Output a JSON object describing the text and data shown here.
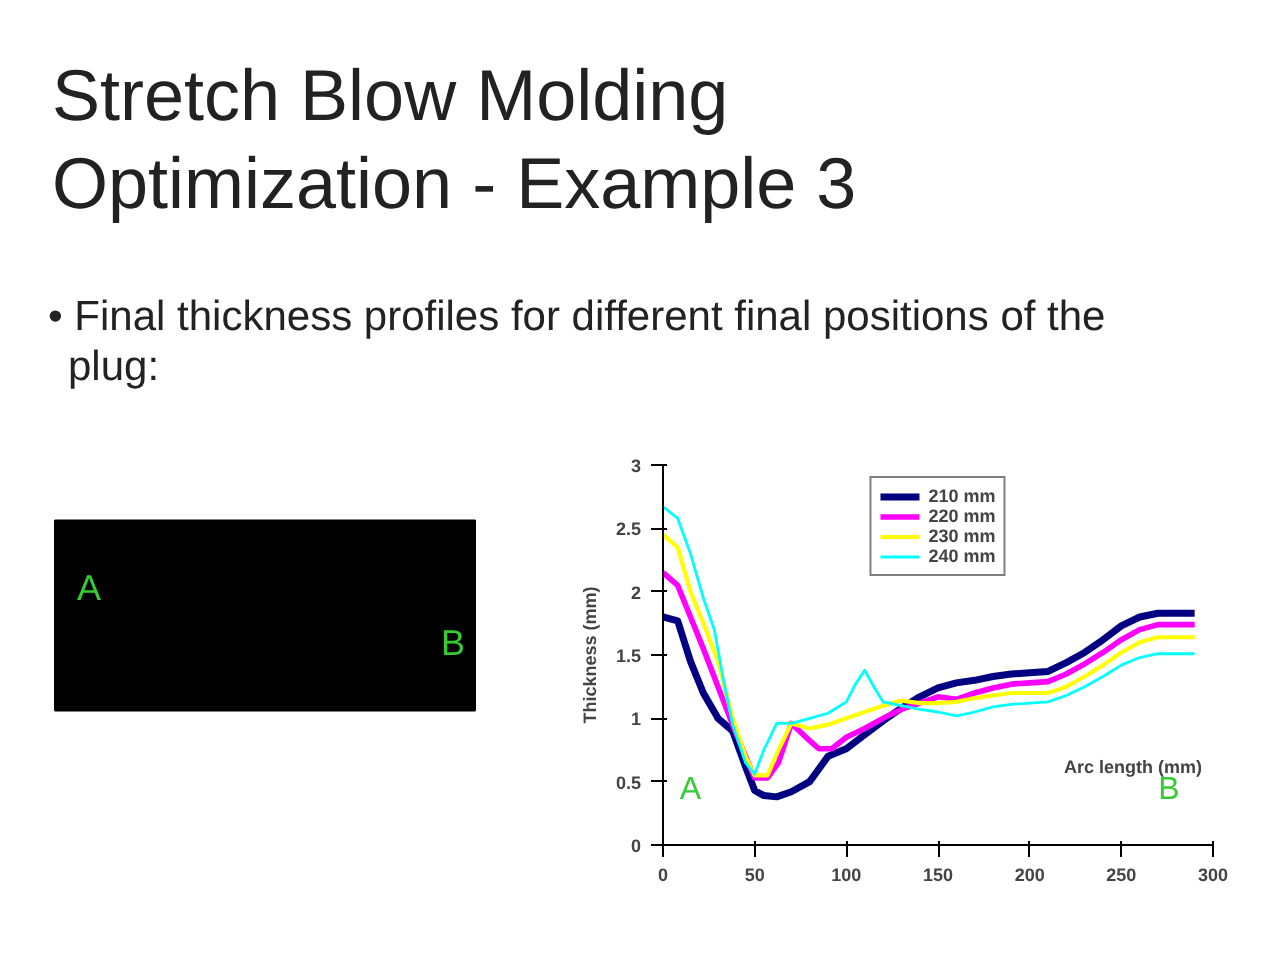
{
  "chart_data": {
    "type": "line",
    "title": "Stretch Blow Molding Optimization - Example 3",
    "subtitle": "• Final thickness profiles for different final positions of the plug:",
    "xlabel": "Arc length (mm)",
    "ylabel": "Thickness (mm)",
    "xlim": [
      0,
      300
    ],
    "ylim": [
      0,
      3
    ],
    "xticks": [
      0,
      50,
      100,
      150,
      200,
      250,
      300
    ],
    "yticks": [
      0,
      0.5,
      1,
      1.5,
      2,
      2.5,
      3
    ],
    "grid": false,
    "legend": "top",
    "marker": "none",
    "line_style": "solid",
    "annotations": [
      "A",
      "B",
      "A",
      "B"
    ],
    "series": [
      {
        "name": "210 mm",
        "color": "#000080",
        "x": [
          0,
          8,
          15,
          22,
          30,
          38,
          45,
          50,
          55,
          62,
          70,
          80,
          90,
          100,
          110,
          120,
          130,
          140,
          150,
          160,
          170,
          180,
          190,
          200,
          210,
          220,
          230,
          240,
          250,
          260,
          270,
          290
        ],
        "values": [
          1.8,
          1.77,
          1.45,
          1.2,
          1.0,
          0.9,
          0.62,
          0.43,
          0.39,
          0.38,
          0.42,
          0.5,
          0.7,
          0.76,
          0.87,
          0.98,
          1.08,
          1.17,
          1.24,
          1.28,
          1.3,
          1.33,
          1.35,
          1.36,
          1.37,
          1.44,
          1.52,
          1.62,
          1.73,
          1.8,
          1.83,
          1.83
        ]
      },
      {
        "name": "220 mm",
        "color": "#ff00ff",
        "x": [
          0,
          8,
          15,
          22,
          30,
          38,
          45,
          50,
          57,
          63,
          70,
          78,
          85,
          92,
          100,
          110,
          120,
          130,
          140,
          150,
          160,
          170,
          180,
          190,
          200,
          210,
          220,
          230,
          240,
          250,
          260,
          270,
          290
        ],
        "values": [
          2.15,
          2.05,
          1.8,
          1.55,
          1.25,
          0.95,
          0.7,
          0.53,
          0.53,
          0.65,
          0.96,
          0.85,
          0.76,
          0.76,
          0.85,
          0.92,
          1.0,
          1.07,
          1.12,
          1.17,
          1.15,
          1.2,
          1.24,
          1.27,
          1.28,
          1.29,
          1.35,
          1.43,
          1.52,
          1.62,
          1.7,
          1.74,
          1.74
        ]
      },
      {
        "name": "230 mm",
        "color": "#ffff00",
        "x": [
          0,
          8,
          15,
          22,
          30,
          38,
          45,
          50,
          57,
          63,
          70,
          80,
          90,
          100,
          110,
          120,
          130,
          140,
          150,
          160,
          170,
          180,
          190,
          200,
          210,
          220,
          230,
          240,
          250,
          260,
          270,
          290
        ],
        "values": [
          2.45,
          2.35,
          2.0,
          1.75,
          1.45,
          1.0,
          0.7,
          0.55,
          0.55,
          0.75,
          0.96,
          0.92,
          0.95,
          1.0,
          1.05,
          1.1,
          1.14,
          1.12,
          1.12,
          1.13,
          1.16,
          1.18,
          1.2,
          1.2,
          1.2,
          1.25,
          1.33,
          1.42,
          1.52,
          1.6,
          1.64,
          1.64
        ]
      },
      {
        "name": "240 mm",
        "color": "#00ffff",
        "x": [
          0,
          8,
          15,
          22,
          28,
          33,
          38,
          45,
          50,
          55,
          62,
          70,
          80,
          90,
          100,
          105,
          110,
          115,
          120,
          130,
          140,
          150,
          160,
          170,
          180,
          190,
          200,
          210,
          220,
          230,
          240,
          250,
          260,
          270,
          290
        ],
        "values": [
          2.67,
          2.58,
          2.3,
          1.95,
          1.7,
          1.3,
          0.95,
          0.65,
          0.56,
          0.75,
          0.96,
          0.96,
          1.0,
          1.04,
          1.13,
          1.27,
          1.38,
          1.25,
          1.13,
          1.1,
          1.07,
          1.05,
          1.02,
          1.05,
          1.09,
          1.11,
          1.12,
          1.13,
          1.18,
          1.25,
          1.33,
          1.42,
          1.48,
          1.51,
          1.51
        ]
      }
    ]
  }
}
